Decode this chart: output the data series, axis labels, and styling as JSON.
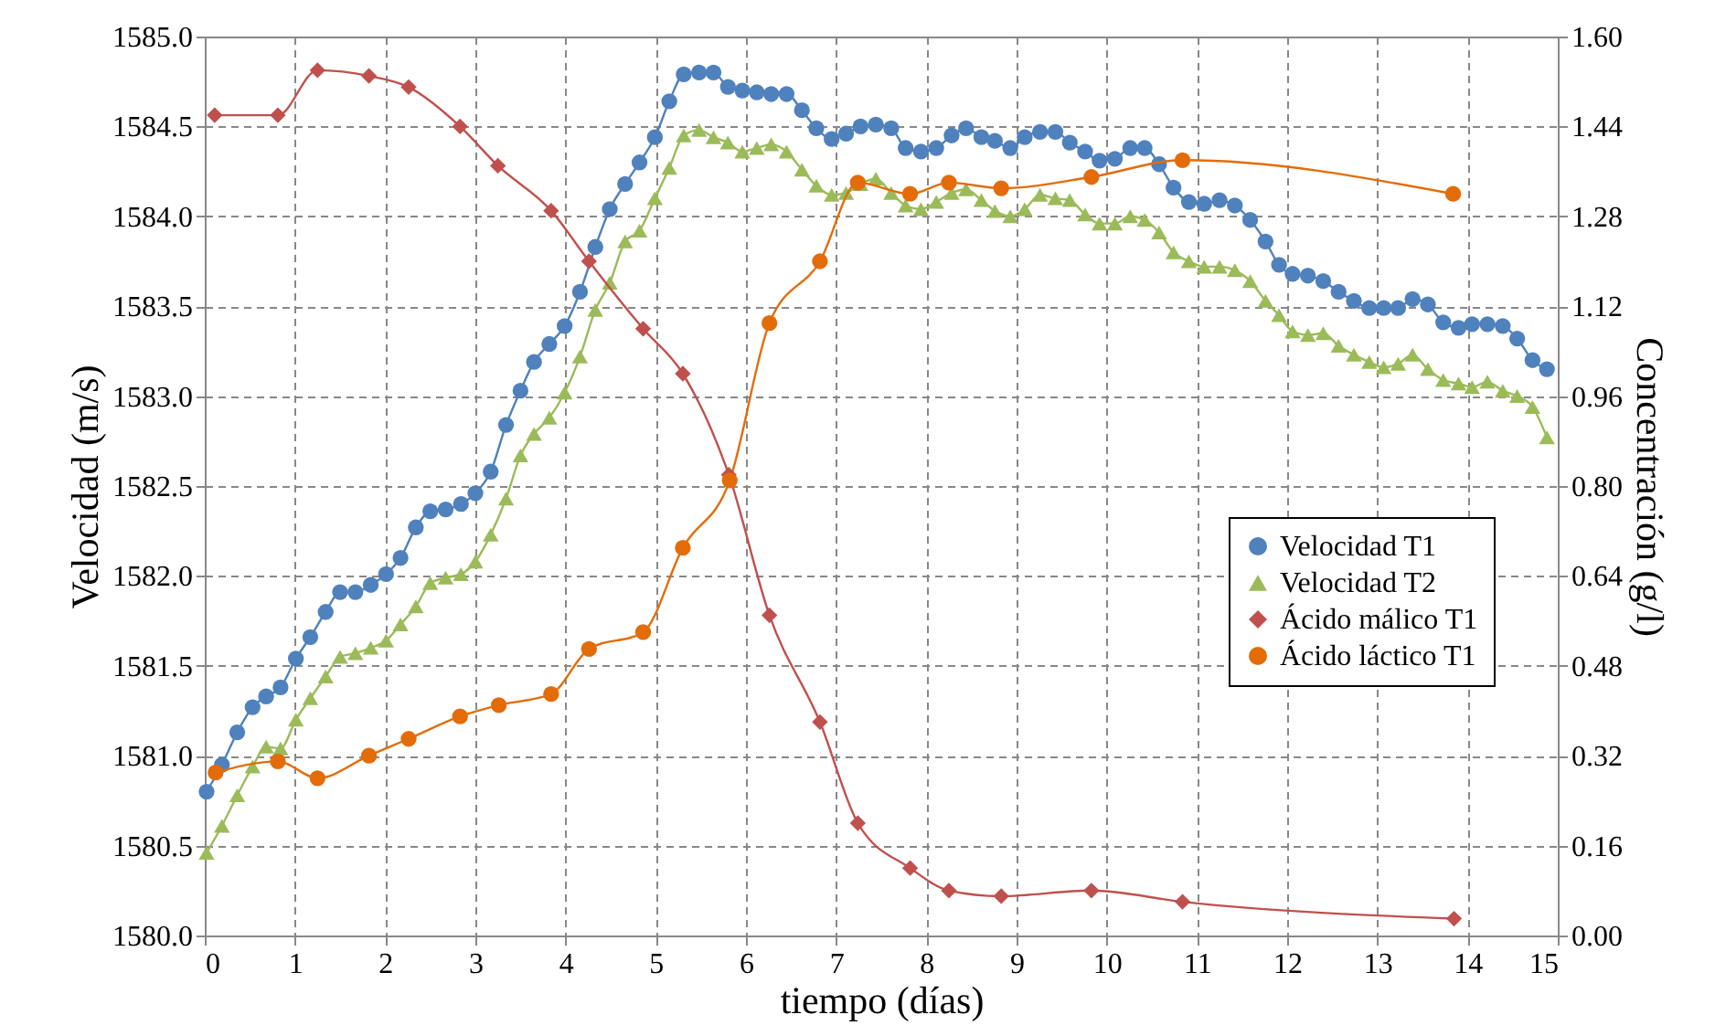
{
  "chart_data": {
    "type": "line",
    "xlabel": "tiempo (días)",
    "ylabel": "Velocidad (m/s)",
    "y2label": "Concentración (g/l)",
    "xlim": [
      0,
      15
    ],
    "xticks": [
      0,
      1,
      2,
      3,
      4,
      5,
      6,
      7,
      8,
      9,
      10,
      11,
      12,
      13,
      14,
      15
    ],
    "ylim": [
      1580,
      1585
    ],
    "yticks": [
      {
        "value": 1580,
        "label": "1580.0"
      },
      {
        "value": 1580.5,
        "label": "1580.5"
      },
      {
        "value": 1581,
        "label": "1581.0"
      },
      {
        "value": 1581.5,
        "label": "1581.5"
      },
      {
        "value": 1582,
        "label": "1582.0"
      },
      {
        "value": 1582.5,
        "label": "1582.5"
      },
      {
        "value": 1583,
        "label": "1583.0"
      },
      {
        "value": 1583.5,
        "label": "1583.5"
      },
      {
        "value": 1584,
        "label": "1584.0"
      },
      {
        "value": 1584.5,
        "label": "1584.5"
      },
      {
        "value": 1585,
        "label": "1585.0"
      }
    ],
    "y2lim": [
      0,
      1.6
    ],
    "y2ticks": [
      {
        "value": 0,
        "label": "0.00"
      },
      {
        "value": 0.16,
        "label": "0.16"
      },
      {
        "value": 0.32,
        "label": "0.32"
      },
      {
        "value": 0.48,
        "label": "0.48"
      },
      {
        "value": 0.64,
        "label": "0.64"
      },
      {
        "value": 0.8,
        "label": "0.80"
      },
      {
        "value": 0.96,
        "label": "0.96"
      },
      {
        "value": 1.12,
        "label": "1.12"
      },
      {
        "value": 1.28,
        "label": "1.28"
      },
      {
        "value": 1.44,
        "label": "1.44"
      },
      {
        "value": 1.6,
        "label": "1.60"
      }
    ],
    "grid": true,
    "legend": "right",
    "line_style": "solid",
    "series": [
      {
        "name": "Velocidad      T1",
        "color": "#4f81bd",
        "marker": "circle",
        "x": [
          0.02,
          0.19,
          0.36,
          0.53,
          0.68,
          0.84,
          1.01,
          1.17,
          1.34,
          1.5,
          1.67,
          1.84,
          2.01,
          2.17,
          2.34,
          2.5,
          2.67,
          2.84,
          3.0,
          3.17,
          3.34,
          3.5,
          3.65,
          3.82,
          3.99,
          4.16,
          4.33,
          4.49,
          4.66,
          4.82,
          4.99,
          5.15,
          5.31,
          5.48,
          5.64,
          5.8,
          5.96,
          6.12,
          6.28,
          6.45,
          6.62,
          6.78,
          6.95,
          7.11,
          7.27,
          7.44,
          7.61,
          7.77,
          7.94,
          8.11,
          8.28,
          8.44,
          8.61,
          8.76,
          8.93,
          9.09,
          9.26,
          9.43,
          9.59,
          9.76,
          9.92,
          10.09,
          10.26,
          10.42,
          10.58,
          10.74,
          10.91,
          11.08,
          11.25,
          11.42,
          11.59,
          11.76,
          11.91,
          12.06,
          12.23,
          12.4,
          12.57,
          12.74,
          12.91,
          13.07,
          13.23,
          13.39,
          13.56,
          13.73,
          13.9,
          14.05,
          14.22,
          14.39,
          14.55,
          14.72,
          14.88
        ],
        "values": [
          1580.8,
          1580.95,
          1581.13,
          1581.27,
          1581.33,
          1581.38,
          1581.54,
          1581.66,
          1581.8,
          1581.91,
          1581.91,
          1581.95,
          1582.01,
          1582.1,
          1582.27,
          1582.36,
          1582.37,
          1582.4,
          1582.46,
          1582.58,
          1582.84,
          1583.03,
          1583.19,
          1583.29,
          1583.39,
          1583.58,
          1583.83,
          1584.04,
          1584.18,
          1584.3,
          1584.44,
          1584.64,
          1584.79,
          1584.8,
          1584.8,
          1584.72,
          1584.7,
          1584.69,
          1584.68,
          1584.68,
          1584.59,
          1584.49,
          1584.43,
          1584.46,
          1584.5,
          1584.51,
          1584.49,
          1584.38,
          1584.36,
          1584.38,
          1584.45,
          1584.49,
          1584.44,
          1584.42,
          1584.38,
          1584.44,
          1584.47,
          1584.47,
          1584.41,
          1584.36,
          1584.31,
          1584.32,
          1584.38,
          1584.38,
          1584.29,
          1584.16,
          1584.08,
          1584.07,
          1584.09,
          1584.06,
          1583.98,
          1583.86,
          1583.73,
          1583.68,
          1583.67,
          1583.64,
          1583.58,
          1583.53,
          1583.49,
          1583.49,
          1583.49,
          1583.54,
          1583.51,
          1583.41,
          1583.38,
          1583.4,
          1583.4,
          1583.39,
          1583.32,
          1583.2,
          1583.15
        ]
      },
      {
        "name": "Velocidad      T2",
        "color": "#9bbb59",
        "marker": "triangle",
        "x": [
          0.02,
          0.19,
          0.36,
          0.53,
          0.68,
          0.84,
          1.01,
          1.17,
          1.34,
          1.5,
          1.67,
          1.84,
          2.01,
          2.17,
          2.34,
          2.5,
          2.67,
          2.84,
          3.0,
          3.17,
          3.34,
          3.5,
          3.65,
          3.82,
          3.99,
          4.16,
          4.33,
          4.49,
          4.66,
          4.82,
          4.99,
          5.15,
          5.31,
          5.48,
          5.64,
          5.8,
          5.96,
          6.12,
          6.28,
          6.45,
          6.62,
          6.78,
          6.95,
          7.11,
          7.27,
          7.44,
          7.61,
          7.77,
          7.94,
          8.11,
          8.28,
          8.44,
          8.61,
          8.76,
          8.93,
          9.09,
          9.26,
          9.43,
          9.59,
          9.76,
          9.92,
          10.09,
          10.26,
          10.42,
          10.58,
          10.74,
          10.91,
          11.08,
          11.25,
          11.42,
          11.59,
          11.76,
          11.91,
          12.06,
          12.23,
          12.4,
          12.57,
          12.74,
          12.91,
          13.07,
          13.23,
          13.39,
          13.56,
          13.73,
          13.9,
          14.05,
          14.22,
          14.39,
          14.55,
          14.72,
          14.88
        ],
        "values": [
          1580.46,
          1580.61,
          1580.78,
          1580.94,
          1581.05,
          1581.04,
          1581.2,
          1581.32,
          1581.44,
          1581.55,
          1581.57,
          1581.6,
          1581.64,
          1581.73,
          1581.83,
          1581.96,
          1581.99,
          1582.01,
          1582.08,
          1582.23,
          1582.43,
          1582.67,
          1582.79,
          1582.88,
          1583.02,
          1583.22,
          1583.48,
          1583.63,
          1583.86,
          1583.92,
          1584.1,
          1584.27,
          1584.45,
          1584.48,
          1584.44,
          1584.41,
          1584.36,
          1584.38,
          1584.4,
          1584.36,
          1584.26,
          1584.17,
          1584.12,
          1584.13,
          1584.18,
          1584.21,
          1584.13,
          1584.06,
          1584.04,
          1584.08,
          1584.13,
          1584.15,
          1584.09,
          1584.03,
          1584.0,
          1584.04,
          1584.12,
          1584.1,
          1584.09,
          1584.01,
          1583.96,
          1583.96,
          1584.0,
          1583.98,
          1583.91,
          1583.8,
          1583.75,
          1583.72,
          1583.72,
          1583.7,
          1583.64,
          1583.53,
          1583.45,
          1583.36,
          1583.34,
          1583.35,
          1583.28,
          1583.23,
          1583.19,
          1583.16,
          1583.18,
          1583.23,
          1583.15,
          1583.09,
          1583.07,
          1583.05,
          1583.08,
          1583.03,
          1583.0,
          1582.94,
          1582.77
        ]
      },
      {
        "name": "Ácido málico T1",
        "color": "#c0504d",
        "marker": "diamond",
        "axis": "y2",
        "x": [
          0.11,
          0.81,
          1.25,
          1.82,
          2.26,
          2.83,
          3.25,
          3.84,
          4.26,
          4.86,
          5.3,
          5.81,
          6.26,
          6.82,
          7.24,
          7.82,
          8.25,
          8.83,
          9.83,
          10.84,
          13.85
        ],
        "values": [
          1.46,
          1.46,
          1.54,
          1.53,
          1.51,
          1.44,
          1.37,
          1.29,
          1.2,
          1.08,
          1.0,
          0.82,
          0.57,
          0.38,
          0.2,
          0.12,
          0.08,
          0.07,
          0.08,
          0.06,
          0.03
        ]
      },
      {
        "name": "Ácido láctico T1",
        "color": "#e36c09",
        "marker": "circle",
        "axis": "y2",
        "x": [
          0.12,
          0.81,
          1.25,
          1.82,
          2.26,
          2.83,
          3.26,
          3.84,
          4.26,
          4.86,
          5.3,
          5.82,
          6.26,
          6.82,
          7.24,
          7.82,
          8.25,
          8.83,
          9.83,
          10.84,
          13.84
        ],
        "values": [
          0.29,
          0.31,
          0.28,
          0.32,
          0.35,
          0.39,
          0.41,
          0.43,
          0.51,
          0.54,
          0.69,
          0.81,
          1.09,
          1.2,
          1.34,
          1.32,
          1.34,
          1.33,
          1.35,
          1.38,
          1.32
        ]
      }
    ]
  }
}
